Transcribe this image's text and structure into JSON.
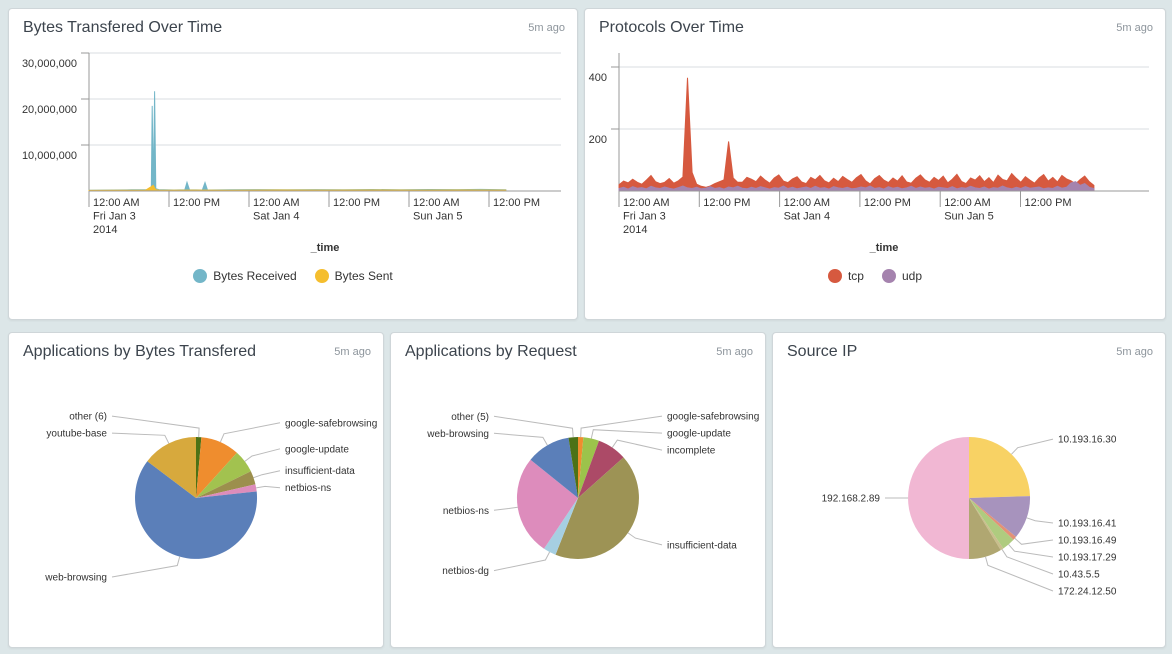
{
  "page": {
    "bg": "#DCE6E8"
  },
  "panels": [
    {
      "title": "Bytes Transfered Over Time",
      "ago": "5m ago"
    },
    {
      "title": "Protocols Over Time",
      "ago": "5m ago"
    },
    {
      "title": "Applications by Bytes Transfered",
      "ago": "5m ago"
    },
    {
      "title": "Applications by Request",
      "ago": "5m ago"
    },
    {
      "title": "Source IP",
      "ago": "5m ago"
    }
  ],
  "chart_data": [
    {
      "type": "area",
      "title": "Bytes Transfered Over Time",
      "xlabel": "_time",
      "ylim": [
        0,
        30000000
      ],
      "grid": true,
      "legend_position": "bottom",
      "y_ticks": [
        {
          "value": 10000000,
          "label": "10,000,000"
        },
        {
          "value": 20000000,
          "label": "20,000,000"
        },
        {
          "value": 30000000,
          "label": "30,000,000"
        }
      ],
      "x_tick_step": 0.1695,
      "x_ticks": [
        [
          "12:00 AM",
          "Fri Jan 3",
          "2014"
        ],
        [
          "12:00 PM"
        ],
        [
          "12:00 AM",
          "Sat Jan 4"
        ],
        [
          "12:00 PM"
        ],
        [
          "12:00 AM",
          "Sun Jan 5"
        ],
        [
          "12:00 PM"
        ]
      ],
      "series": [
        {
          "name": "Bytes Received",
          "color": "#73B6C8",
          "points": [
            [
              0,
              180000
            ],
            [
              0.05,
              220000
            ],
            [
              0.09,
              260000
            ],
            [
              0.125,
              300000
            ],
            [
              0.132,
              400000
            ],
            [
              0.134,
              18500000
            ],
            [
              0.1365,
              600000
            ],
            [
              0.139,
              21700000
            ],
            [
              0.1415,
              500000
            ],
            [
              0.148,
              300000
            ],
            [
              0.18,
              220000
            ],
            [
              0.203,
              250000
            ],
            [
              0.2076,
              1900000
            ],
            [
              0.213,
              250000
            ],
            [
              0.24,
              220000
            ],
            [
              0.2458,
              1850000
            ],
            [
              0.251,
              220000
            ],
            [
              0.3,
              260000
            ],
            [
              0.36,
              300000
            ],
            [
              0.42,
              260000
            ],
            [
              0.48,
              310000
            ],
            [
              0.54,
              270000
            ],
            [
              0.6,
              320000
            ],
            [
              0.66,
              280000
            ],
            [
              0.72,
              330000
            ],
            [
              0.78,
              300000
            ],
            [
              0.83,
              340000
            ],
            [
              0.883,
              260000
            ]
          ]
        },
        {
          "name": "Bytes Sent",
          "color": "#F5BE2E",
          "points": [
            [
              0,
              140000
            ],
            [
              0.06,
              160000
            ],
            [
              0.12,
              180000
            ],
            [
              0.131,
              900000
            ],
            [
              0.136,
              1250000
            ],
            [
              0.141,
              300000
            ],
            [
              0.15,
              180000
            ],
            [
              0.22,
              200000
            ],
            [
              0.3,
              180000
            ],
            [
              0.4,
              210000
            ],
            [
              0.5,
              185000
            ],
            [
              0.6,
              215000
            ],
            [
              0.7,
              190000
            ],
            [
              0.8,
              220000
            ],
            [
              0.883,
              190000
            ]
          ]
        }
      ]
    },
    {
      "type": "area",
      "title": "Protocols Over Time",
      "xlabel": "_time",
      "ylim": [
        0,
        445
      ],
      "grid": true,
      "legend_position": "bottom",
      "y_ticks": [
        {
          "value": 200,
          "label": "200"
        },
        {
          "value": 400,
          "label": "400"
        }
      ],
      "x_tick_step": 0.1515,
      "x_ticks": [
        [
          "12:00 AM",
          "Fri Jan 3",
          "2014"
        ],
        [
          "12:00 PM"
        ],
        [
          "12:00 AM",
          "Sat Jan 4"
        ],
        [
          "12:00 PM"
        ],
        [
          "12:00 AM",
          "Sun Jan 5"
        ],
        [
          "12:00 PM"
        ]
      ],
      "x_end": 0.896,
      "series": [
        {
          "name": "tcp",
          "color": "#D6593F",
          "values": [
            20,
            32,
            26,
            38,
            28,
            22,
            35,
            50,
            30,
            24,
            28,
            40,
            25,
            33,
            45,
            365,
            60,
            22,
            15,
            12,
            16,
            24,
            30,
            36,
            160,
            42,
            28,
            28,
            44,
            38,
            30,
            48,
            35,
            25,
            42,
            52,
            32,
            27,
            39,
            46,
            29,
            24,
            44,
            36,
            50,
            33,
            26,
            41,
            30,
            47,
            37,
            28,
            43,
            53,
            33,
            23,
            40,
            50,
            35,
            27,
            42,
            32,
            49,
            29,
            25,
            41,
            52,
            36,
            28,
            44,
            34,
            48,
            26,
            38,
            54,
            31,
            24,
            42,
            35,
            49,
            30,
            43,
            27,
            51,
            37,
            33,
            56,
            41,
            28,
            46,
            35,
            25,
            42,
            53,
            32,
            44,
            29,
            50,
            39,
            33,
            23,
            37,
            48,
            30,
            18
          ]
        },
        {
          "name": "udp",
          "color": "#A583AE",
          "values": [
            8,
            12,
            6,
            14,
            9,
            11,
            7,
            15,
            10,
            8,
            13,
            9,
            6,
            11,
            16,
            10,
            8,
            12,
            7,
            9,
            14,
            8,
            11,
            6,
            13,
            10,
            15,
            9,
            7,
            12,
            8,
            14,
            10,
            6,
            11,
            9,
            16,
            8,
            12,
            7,
            10,
            13,
            8,
            15,
            9,
            11,
            6,
            14,
            10,
            8,
            12,
            7,
            9,
            13,
            10,
            16,
            8,
            11,
            6,
            14,
            9,
            12,
            7,
            10,
            15,
            8,
            13,
            9,
            11,
            6,
            12,
            10,
            8,
            14,
            7,
            11,
            9,
            15,
            10,
            8,
            13,
            6,
            11,
            9,
            16,
            10,
            7,
            12,
            8,
            14,
            9,
            11,
            13,
            7,
            10,
            8,
            15,
            9,
            12,
            26,
            30,
            18,
            24,
            12,
            8
          ]
        }
      ]
    },
    {
      "type": "pie",
      "title": "Applications by Bytes Transfered",
      "slices": [
        {
          "label": "other (6)",
          "value": 1.4,
          "color": "#4C7216",
          "side": "left"
        },
        {
          "label": "google-safebrowsing",
          "value": 10.3,
          "color": "#EF8D2E",
          "side": "right"
        },
        {
          "label": "google-update",
          "value": 6.1,
          "color": "#A2C24F",
          "side": "right"
        },
        {
          "label": "insufficient-data",
          "value": 3.6,
          "color": "#9C8F4D",
          "side": "right"
        },
        {
          "label": "netbios-ns",
          "value": 1.9,
          "color": "#DD8DBB",
          "side": "right"
        },
        {
          "label": "web-browsing",
          "value": 62.0,
          "color": "#5B7FB9",
          "side": "left"
        },
        {
          "label": "youtube-base",
          "value": 14.7,
          "color": "#D7A93D",
          "side": "left"
        }
      ]
    },
    {
      "type": "pie",
      "title": "Applications by Request",
      "slices": [
        {
          "label": "google-safebrowsing",
          "value": 1.4,
          "color": "#EF8D2E",
          "side": "right"
        },
        {
          "label": "google-update",
          "value": 4.2,
          "color": "#9CC34B",
          "side": "right"
        },
        {
          "label": "incomplete",
          "value": 7.8,
          "color": "#AC4A67",
          "side": "right"
        },
        {
          "label": "insufficient-data",
          "value": 42.6,
          "color": "#9D9355",
          "side": "right"
        },
        {
          "label": "netbios-dg",
          "value": 3.4,
          "color": "#A6CFE2",
          "side": "left"
        },
        {
          "label": "netbios-ns",
          "value": 26.4,
          "color": "#DD8CBC",
          "side": "left"
        },
        {
          "label": "web-browsing",
          "value": 11.7,
          "color": "#5B7FB9",
          "side": "left"
        },
        {
          "label": "other (5)",
          "value": 2.5,
          "color": "#4C7216",
          "side": "left"
        }
      ]
    },
    {
      "type": "pie",
      "title": "Source IP",
      "slices": [
        {
          "label": "10.193.16.30",
          "value": 24.5,
          "color": "#F8D264",
          "side": "right"
        },
        {
          "label": "10.193.16.41",
          "value": 11.5,
          "color": "#A793BD",
          "side": "right"
        },
        {
          "label": "10.193.16.49",
          "value": 1.0,
          "color": "#E39176",
          "side": "right"
        },
        {
          "label": "10.193.17.29",
          "value": 3.5,
          "color": "#AFCB7F",
          "side": "right"
        },
        {
          "label": "10.43.5.5",
          "value": 0.8,
          "color": "#C9BE8C",
          "side": "right"
        },
        {
          "label": "172.24.12.50",
          "value": 8.7,
          "color": "#B0A771",
          "side": "right"
        },
        {
          "label": "192.168.2.89",
          "value": 50.0,
          "color": "#F1B7D3",
          "side": "left"
        }
      ]
    }
  ]
}
